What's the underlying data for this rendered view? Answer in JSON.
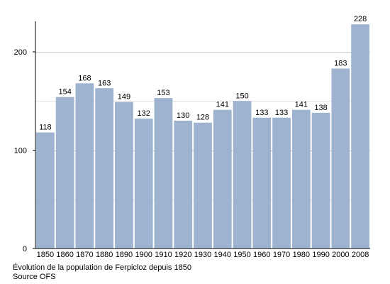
{
  "chart_data": {
    "type": "bar",
    "categories": [
      "1850",
      "1860",
      "1870",
      "1880",
      "1890",
      "1900",
      "1910",
      "1920",
      "1930",
      "1940",
      "1950",
      "1960",
      "1970",
      "1980",
      "1990",
      "2000",
      "2008"
    ],
    "values": [
      118,
      154,
      168,
      163,
      149,
      132,
      153,
      130,
      128,
      141,
      150,
      133,
      133,
      141,
      138,
      183,
      228
    ],
    "yticks": [
      0,
      100,
      200
    ],
    "ylim": [
      0,
      250
    ],
    "gridlines": [
      50,
      100,
      150,
      200
    ],
    "grid": true,
    "bar_color": "#9db3cf",
    "title": "Évolution de la population de Ferpicloz depuis 1850",
    "source": "Source OFS"
  }
}
